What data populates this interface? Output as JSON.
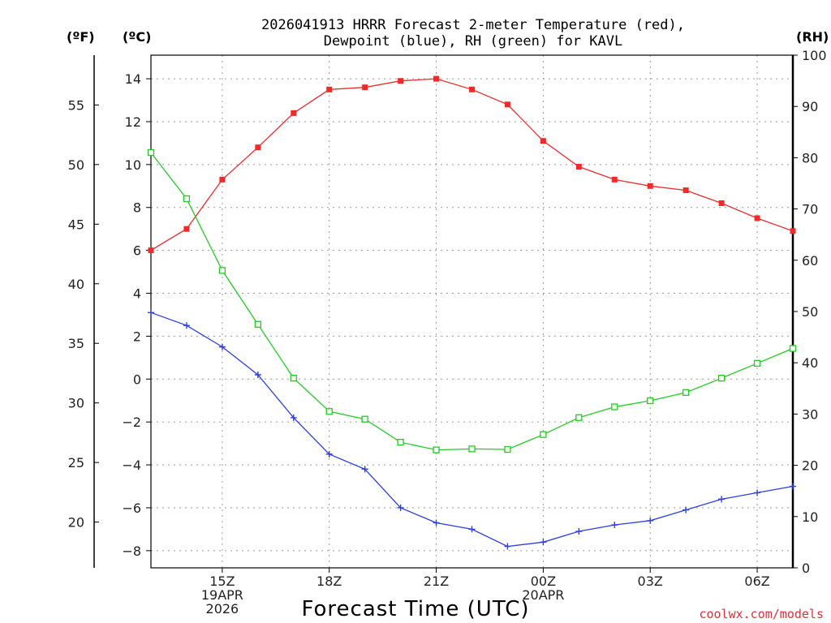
{
  "chart_data": {
    "type": "line",
    "title_lines": [
      "2026041913 HRRR Forecast 2-meter Temperature (red),",
      "Dewpoint (blue), RH (green) for KAVL"
    ],
    "unit_labels": {
      "fahrenheit": "(ºF)",
      "celsius": "(ºC)",
      "rh": "(RH)"
    },
    "xlabel": "Forecast Time (UTC)",
    "credit": "coolwx.com/models",
    "hours": [
      13,
      14,
      15,
      16,
      17,
      18,
      19,
      20,
      21,
      22,
      23,
      24,
      25,
      26,
      27,
      28,
      29,
      30,
      31
    ],
    "xlim": [
      13,
      31
    ],
    "x_ticks": [
      {
        "hour": 15,
        "lines": [
          "15Z",
          "19APR",
          "2026"
        ]
      },
      {
        "hour": 18,
        "lines": [
          "18Z"
        ]
      },
      {
        "hour": 21,
        "lines": [
          "21Z"
        ]
      },
      {
        "hour": 24,
        "lines": [
          "00Z",
          "20APR"
        ]
      },
      {
        "hour": 27,
        "lines": [
          "03Z"
        ]
      },
      {
        "hour": 30,
        "lines": [
          "06Z"
        ]
      }
    ],
    "celsius_axis": {
      "ylim": [
        -8.8,
        15.1
      ],
      "ticks": [
        "14",
        "12",
        "10",
        "8",
        "6",
        "4",
        "2",
        "0",
        "−2",
        "−4",
        "−6",
        "−8"
      ],
      "tick_values": [
        14,
        12,
        10,
        8,
        6,
        4,
        2,
        0,
        -2,
        -4,
        -6,
        -8
      ]
    },
    "fahrenheit_axis": {
      "ticks": [
        "55",
        "50",
        "45",
        "40",
        "35",
        "30",
        "25",
        "20"
      ],
      "tick_values": [
        55,
        50,
        45,
        40,
        35,
        30,
        25,
        20
      ]
    },
    "rh_axis": {
      "ylim": [
        0,
        100
      ],
      "ticks": [
        "100",
        "90",
        "80",
        "70",
        "60",
        "50",
        "40",
        "30",
        "20",
        "10",
        "0"
      ],
      "tick_values": [
        100,
        90,
        80,
        70,
        60,
        50,
        40,
        30,
        20,
        10,
        0
      ]
    },
    "series": [
      {
        "name": "Temperature",
        "axis": "celsius",
        "color": "#ee2b2b",
        "marker": "filled-square",
        "values": [
          6.0,
          7.0,
          9.3,
          10.8,
          12.4,
          13.5,
          13.6,
          13.9,
          14.0,
          13.5,
          12.8,
          11.1,
          9.9,
          9.3,
          9.0,
          8.8,
          8.2,
          7.5,
          6.9
        ]
      },
      {
        "name": "Dewpoint",
        "axis": "celsius",
        "color": "#2b3ee8",
        "marker": "plus",
        "values": [
          3.1,
          2.5,
          1.5,
          0.2,
          -1.8,
          -3.5,
          -4.2,
          -6.0,
          -6.7,
          -7.0,
          -7.8,
          -7.6,
          -7.1,
          -6.8,
          -6.6,
          -6.1,
          -5.6,
          -5.3,
          -5.0
        ]
      },
      {
        "name": "RH",
        "axis": "rh",
        "color": "#22cc22",
        "marker": "open-square",
        "values": [
          81,
          72,
          58,
          47.5,
          37,
          30.5,
          29,
          24.5,
          23,
          23.2,
          23.1,
          26,
          29.3,
          31.4,
          32.6,
          34.2,
          37,
          39.9,
          42.8
        ]
      }
    ]
  }
}
